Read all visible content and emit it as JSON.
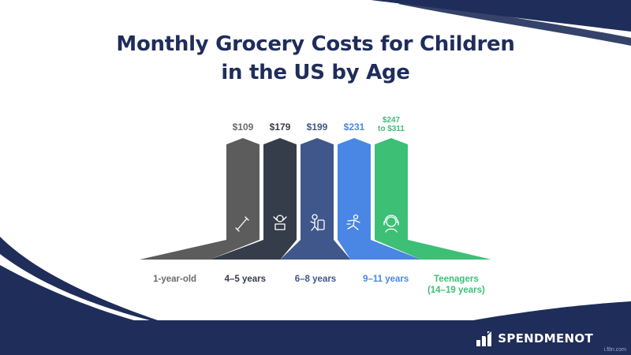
{
  "title": {
    "line1": "Monthly Grocery Costs for Children",
    "line2": "in the US by Age"
  },
  "brand": {
    "name": "SPENDMENOT",
    "logo_icon": "bar-chart-logo-icon"
  },
  "watermark": "i.f8n.com",
  "colors": {
    "title": "#1f2d5a",
    "footer": "#1f2d5a",
    "bars": [
      "#5c5c5c",
      "#363d4a",
      "#3f578a",
      "#4a86e3",
      "#3dbf76"
    ],
    "label_text": [
      "#6b6b6b",
      "#363d4a",
      "#3f578a",
      "#4a86e3",
      "#3dbf76"
    ]
  },
  "chart_data": {
    "type": "bar",
    "title": "Monthly Grocery Costs for Children in the US by Age",
    "categories": [
      "1-year-old",
      "4–5 years",
      "6–8 years",
      "9–11 years",
      "Teenagers (14–19 years)"
    ],
    "category_lines": [
      [
        "1-year-old"
      ],
      [
        "4–5 years"
      ],
      [
        "6–8 years"
      ],
      [
        "9–11 years"
      ],
      [
        "Teenagers",
        "(14–19 years)"
      ]
    ],
    "values": [
      109,
      179,
      199,
      231,
      311
    ],
    "value_labels": [
      [
        "$109"
      ],
      [
        "$179"
      ],
      [
        "$199"
      ],
      [
        "$231"
      ],
      [
        "$247",
        "to $311"
      ]
    ],
    "icons": [
      "baby-bottle-icon",
      "toddler-icon",
      "child-backpack-icon",
      "kid-running-icon",
      "teen-headphones-icon"
    ],
    "grid": false
  }
}
